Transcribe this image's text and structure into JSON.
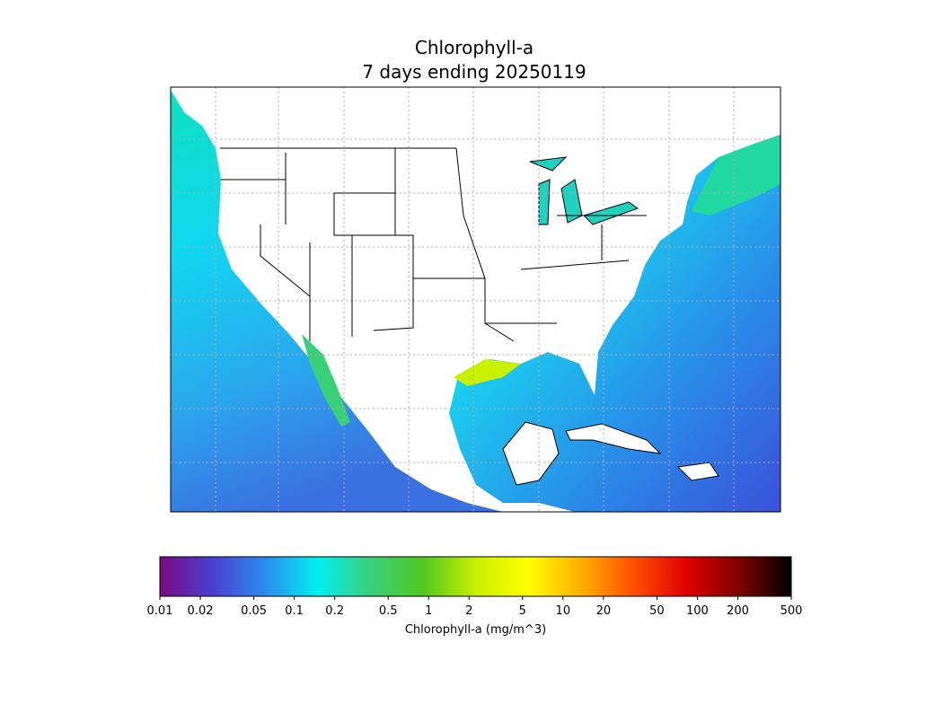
{
  "chart_data": {
    "type": "colorbar",
    "title": "Chlorophyll-a",
    "subtitle": "7 days ending 20250119",
    "xlabel": "Chlorophyll-a (mg/m^3)",
    "log_scale": true,
    "xlim": [
      0.01,
      500
    ],
    "xticks": [
      0.01,
      0.02,
      0.05,
      0.1,
      0.2,
      0.5,
      1,
      2,
      5,
      10,
      20,
      50,
      100,
      200,
      500
    ],
    "colormap": [
      "#7a0a82",
      "#4a3fd0",
      "#2a8cf0",
      "#00f0f0",
      "#3ad07a",
      "#50c820",
      "#c8f000",
      "#ffff00",
      "#ffb000",
      "#ff5000",
      "#e00000",
      "#800000",
      "#000000"
    ]
  }
}
